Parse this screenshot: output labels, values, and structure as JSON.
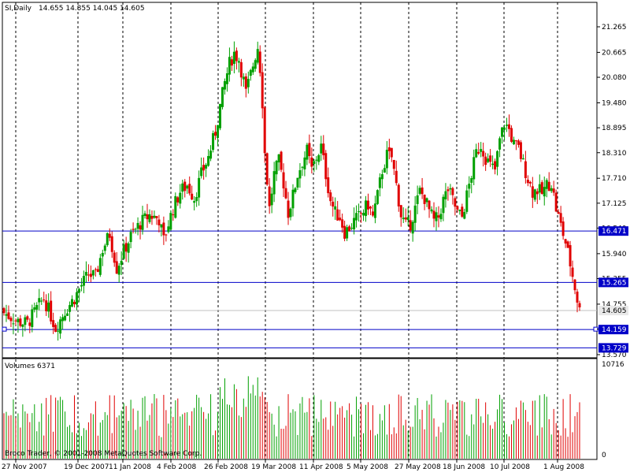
{
  "header": {
    "symbol": "SI,Daily",
    "ohlc": "14.655 14.855 14.045 14.605"
  },
  "volume_header": "Volumes 6371",
  "copyright": "Broco Trader, © 2001-2008 MetaQuotes Software Corp.",
  "colors": {
    "bull": "#00a000",
    "bear": "#e00000",
    "level_line": "#0000c8",
    "level_label_bg": "#0000c8",
    "price_label_bg": "#e8e8e8",
    "grid": "#000000"
  },
  "chart_data": [
    {
      "type": "candlestick",
      "title": "SI,Daily",
      "y_ticks": [
        "21.265",
        "20.665",
        "20.080",
        "19.480",
        "18.895",
        "18.310",
        "17.710",
        "17.125",
        "16.540",
        "15.940",
        "15.355",
        "14.755",
        "14.170",
        "13.570"
      ],
      "x_ticks": [
        "27 Nov 2007",
        "19 Dec 2007",
        "11 Jan 2008",
        "4 Feb 2008",
        "26 Feb 2008",
        "19 Mar 2008",
        "11 Apr 2008",
        "5 May 2008",
        "27 May 2008",
        "18 Jun 2008",
        "10 Jul 2008",
        "1 Aug 2008"
      ],
      "ylim": [
        13.5,
        21.6
      ],
      "grid": true,
      "current_price": "14.605",
      "levels": [
        "16.471",
        "15.265",
        "14.159",
        "13.729"
      ],
      "close_path": [
        [
          0,
          14.55
        ],
        [
          6,
          14.35
        ],
        [
          10,
          14.3
        ],
        [
          14,
          14.65
        ],
        [
          17,
          14.9
        ],
        [
          22,
          14.2
        ],
        [
          26,
          14.6
        ],
        [
          30,
          14.9
        ],
        [
          33,
          15.2
        ],
        [
          36,
          15.45
        ],
        [
          39,
          15.4
        ],
        [
          42,
          16.05
        ],
        [
          45,
          16.4
        ],
        [
          48,
          15.6
        ],
        [
          51,
          16.0
        ],
        [
          54,
          16.35
        ],
        [
          58,
          16.65
        ],
        [
          62,
          16.85
        ],
        [
          66,
          16.75
        ],
        [
          68,
          16.25
        ],
        [
          70,
          16.65
        ],
        [
          72,
          17.0
        ],
        [
          75,
          17.4
        ],
        [
          78,
          17.55
        ],
        [
          81,
          17.25
        ],
        [
          84,
          17.8
        ],
        [
          87,
          18.2
        ],
        [
          90,
          18.8
        ],
        [
          92,
          19.4
        ],
        [
          94,
          19.95
        ],
        [
          96,
          20.4
        ],
        [
          98,
          20.65
        ],
        [
          100,
          20.5
        ],
        [
          102,
          20.0
        ],
        [
          103,
          19.7
        ],
        [
          105,
          20.15
        ],
        [
          107,
          20.6
        ],
        [
          108,
          20.8
        ],
        [
          109,
          20.3
        ],
        [
          110,
          19.5
        ],
        [
          111,
          18.3
        ],
        [
          113,
          17.0
        ],
        [
          115,
          17.8
        ],
        [
          117,
          18.1
        ],
        [
          119,
          17.6
        ],
        [
          121,
          16.9
        ],
        [
          123,
          17.3
        ],
        [
          125,
          17.8
        ],
        [
          127,
          18.1
        ],
        [
          129,
          18.35
        ],
        [
          131,
          17.9
        ],
        [
          133,
          18.2
        ],
        [
          135,
          18.45
        ],
        [
          137,
          17.8
        ],
        [
          139,
          17.2
        ],
        [
          141,
          16.9
        ],
        [
          143,
          16.8
        ],
        [
          145,
          16.45
        ],
        [
          147,
          16.55
        ],
        [
          149,
          16.7
        ],
        [
          151,
          16.8
        ],
        [
          153,
          16.95
        ],
        [
          155,
          17.1
        ],
        [
          157,
          16.8
        ],
        [
          159,
          17.3
        ],
        [
          161,
          17.9
        ],
        [
          163,
          18.25
        ],
        [
          165,
          18.2
        ],
        [
          167,
          17.55
        ],
        [
          169,
          16.85
        ],
        [
          171,
          16.6
        ],
        [
          173,
          16.65
        ],
        [
          175,
          17.0
        ],
        [
          177,
          17.4
        ],
        [
          179,
          17.25
        ],
        [
          181,
          16.95
        ],
        [
          183,
          16.7
        ],
        [
          185,
          16.8
        ],
        [
          187,
          17.2
        ],
        [
          189,
          17.45
        ],
        [
          191,
          17.2
        ],
        [
          193,
          16.9
        ],
        [
          195,
          16.8
        ],
        [
          197,
          17.3
        ],
        [
          199,
          17.8
        ],
        [
          201,
          18.3
        ],
        [
          203,
          18.5
        ],
        [
          205,
          18.2
        ],
        [
          207,
          18.0
        ],
        [
          209,
          17.9
        ],
        [
          211,
          18.6
        ],
        [
          213,
          19.0
        ],
        [
          215,
          18.85
        ],
        [
          217,
          18.5
        ],
        [
          219,
          18.4
        ],
        [
          221,
          18.05
        ],
        [
          223,
          17.7
        ],
        [
          225,
          17.4
        ],
        [
          227,
          17.45
        ],
        [
          229,
          17.35
        ],
        [
          231,
          17.55
        ],
        [
          233,
          17.6
        ],
        [
          235,
          17.0
        ],
        [
          237,
          16.6
        ],
        [
          239,
          16.2
        ],
        [
          241,
          15.7
        ],
        [
          243,
          15.15
        ],
        [
          245,
          14.6
        ]
      ]
    },
    {
      "type": "bar",
      "title": "Volumes 6371",
      "y_ticks": [
        "10716",
        "0"
      ],
      "ylim": [
        0,
        10716
      ]
    }
  ]
}
